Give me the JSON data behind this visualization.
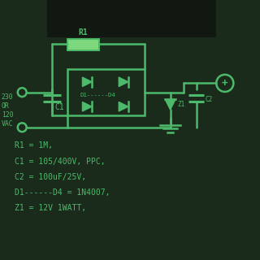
{
  "bg_color": "#1b2b1b",
  "line_color": "#4cba6a",
  "line_width": 1.8,
  "banner_color": "#111811",
  "resistor_fill": "#7dd87d",
  "text_color": "#4cba6a",
  "font_size": 7.0,
  "notes": [
    "R1 = 1M,",
    "C1 = 105/400V, PPC,",
    "C2 = 100uF/25V,",
    "D1------D4 = 1N4007,",
    "Z1 = 12V 1WATT,"
  ]
}
